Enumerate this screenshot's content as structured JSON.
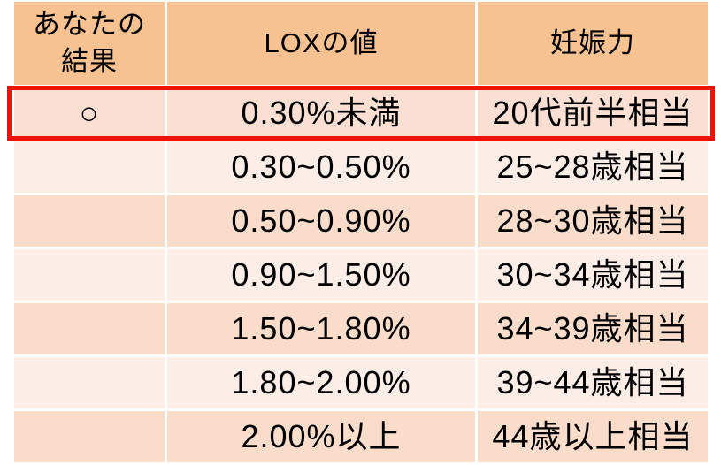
{
  "title": "LOX index fertility result table",
  "header": {
    "result_lines": [
      "あなたの",
      "結果"
    ],
    "lox": "LOXの値",
    "fertility": "妊娠力"
  },
  "highlight": {
    "row_index": 0,
    "mark": "○"
  },
  "colors": {
    "header_bg": "#F7C292",
    "row_dark_bg": "#FADCCB",
    "row_light_bg": "#FCEEE7",
    "highlight_row_bg": "#FADFD2",
    "highlight_border": "#ED1300",
    "text": "#000000",
    "background": "#FFFFFF"
  },
  "chart_data": {
    "type": "table",
    "columns": [
      "あなたの結果",
      "LOXの値",
      "妊娠力"
    ],
    "rows": [
      [
        "○",
        "0.30%未満",
        "20代前半相当"
      ],
      [
        "",
        "0.30~0.50%",
        "25~28歳相当"
      ],
      [
        "",
        "0.50~0.90%",
        "28~30歳相当"
      ],
      [
        "",
        "0.90~1.50%",
        "30~34歳相当"
      ],
      [
        "",
        "1.50~1.80%",
        "34~39歳相当"
      ],
      [
        "",
        "1.80~2.00%",
        "39~44歳相当"
      ],
      [
        "",
        "2.00%以上",
        "44歳以上相当"
      ]
    ],
    "highlighted_row": 0,
    "legend_position": "none",
    "grid": false
  }
}
